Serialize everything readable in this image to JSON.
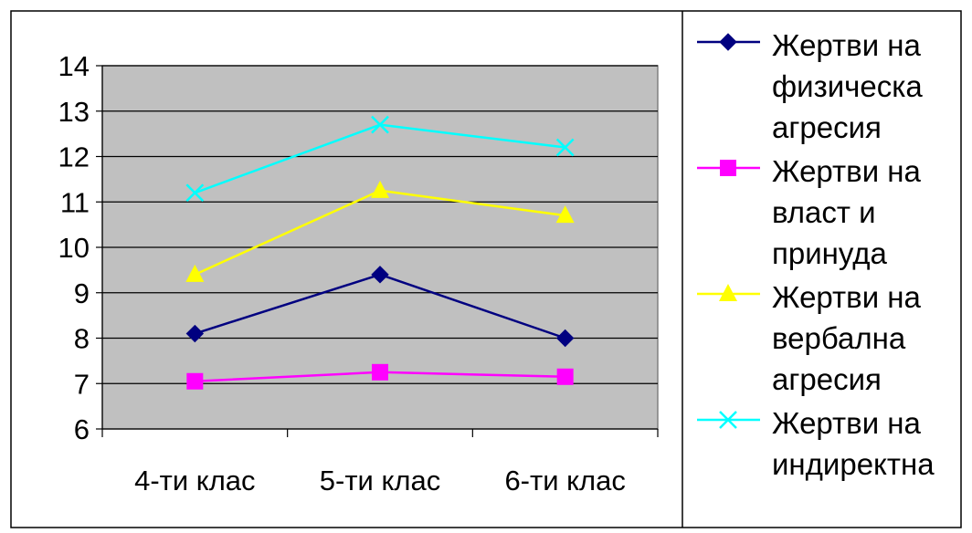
{
  "chart_data": {
    "type": "line",
    "title": "",
    "xlabel": "",
    "ylabel": "",
    "categories": [
      "4-ти клас",
      "5-ти клас",
      "6-ти клас"
    ],
    "ylim": [
      6,
      14
    ],
    "yticks": [
      "6",
      "7",
      "8",
      "9",
      "10",
      "11",
      "12",
      "13",
      "14"
    ],
    "grid": true,
    "plot_background": "#c0c0c0",
    "legend_position": "right",
    "series": [
      {
        "legend_lines": [
          "Жертви на",
          "физическа",
          "агресия"
        ],
        "values": [
          8.1,
          9.4,
          8.0
        ],
        "color": "#000080",
        "marker": "diamond"
      },
      {
        "legend_lines": [
          "Жертви на",
          "власт и",
          "принуда"
        ],
        "values": [
          7.05,
          7.25,
          7.15
        ],
        "color": "#ff00ff",
        "marker": "square"
      },
      {
        "legend_lines": [
          "Жертви на",
          "вербална",
          "агресия"
        ],
        "values": [
          9.4,
          11.25,
          10.7
        ],
        "color": "#ffff00",
        "marker": "triangle"
      },
      {
        "legend_lines": [
          "Жертви на",
          "индиректна"
        ],
        "values": [
          11.2,
          12.7,
          12.2
        ],
        "color": "#00ffff",
        "marker": "x"
      }
    ]
  }
}
